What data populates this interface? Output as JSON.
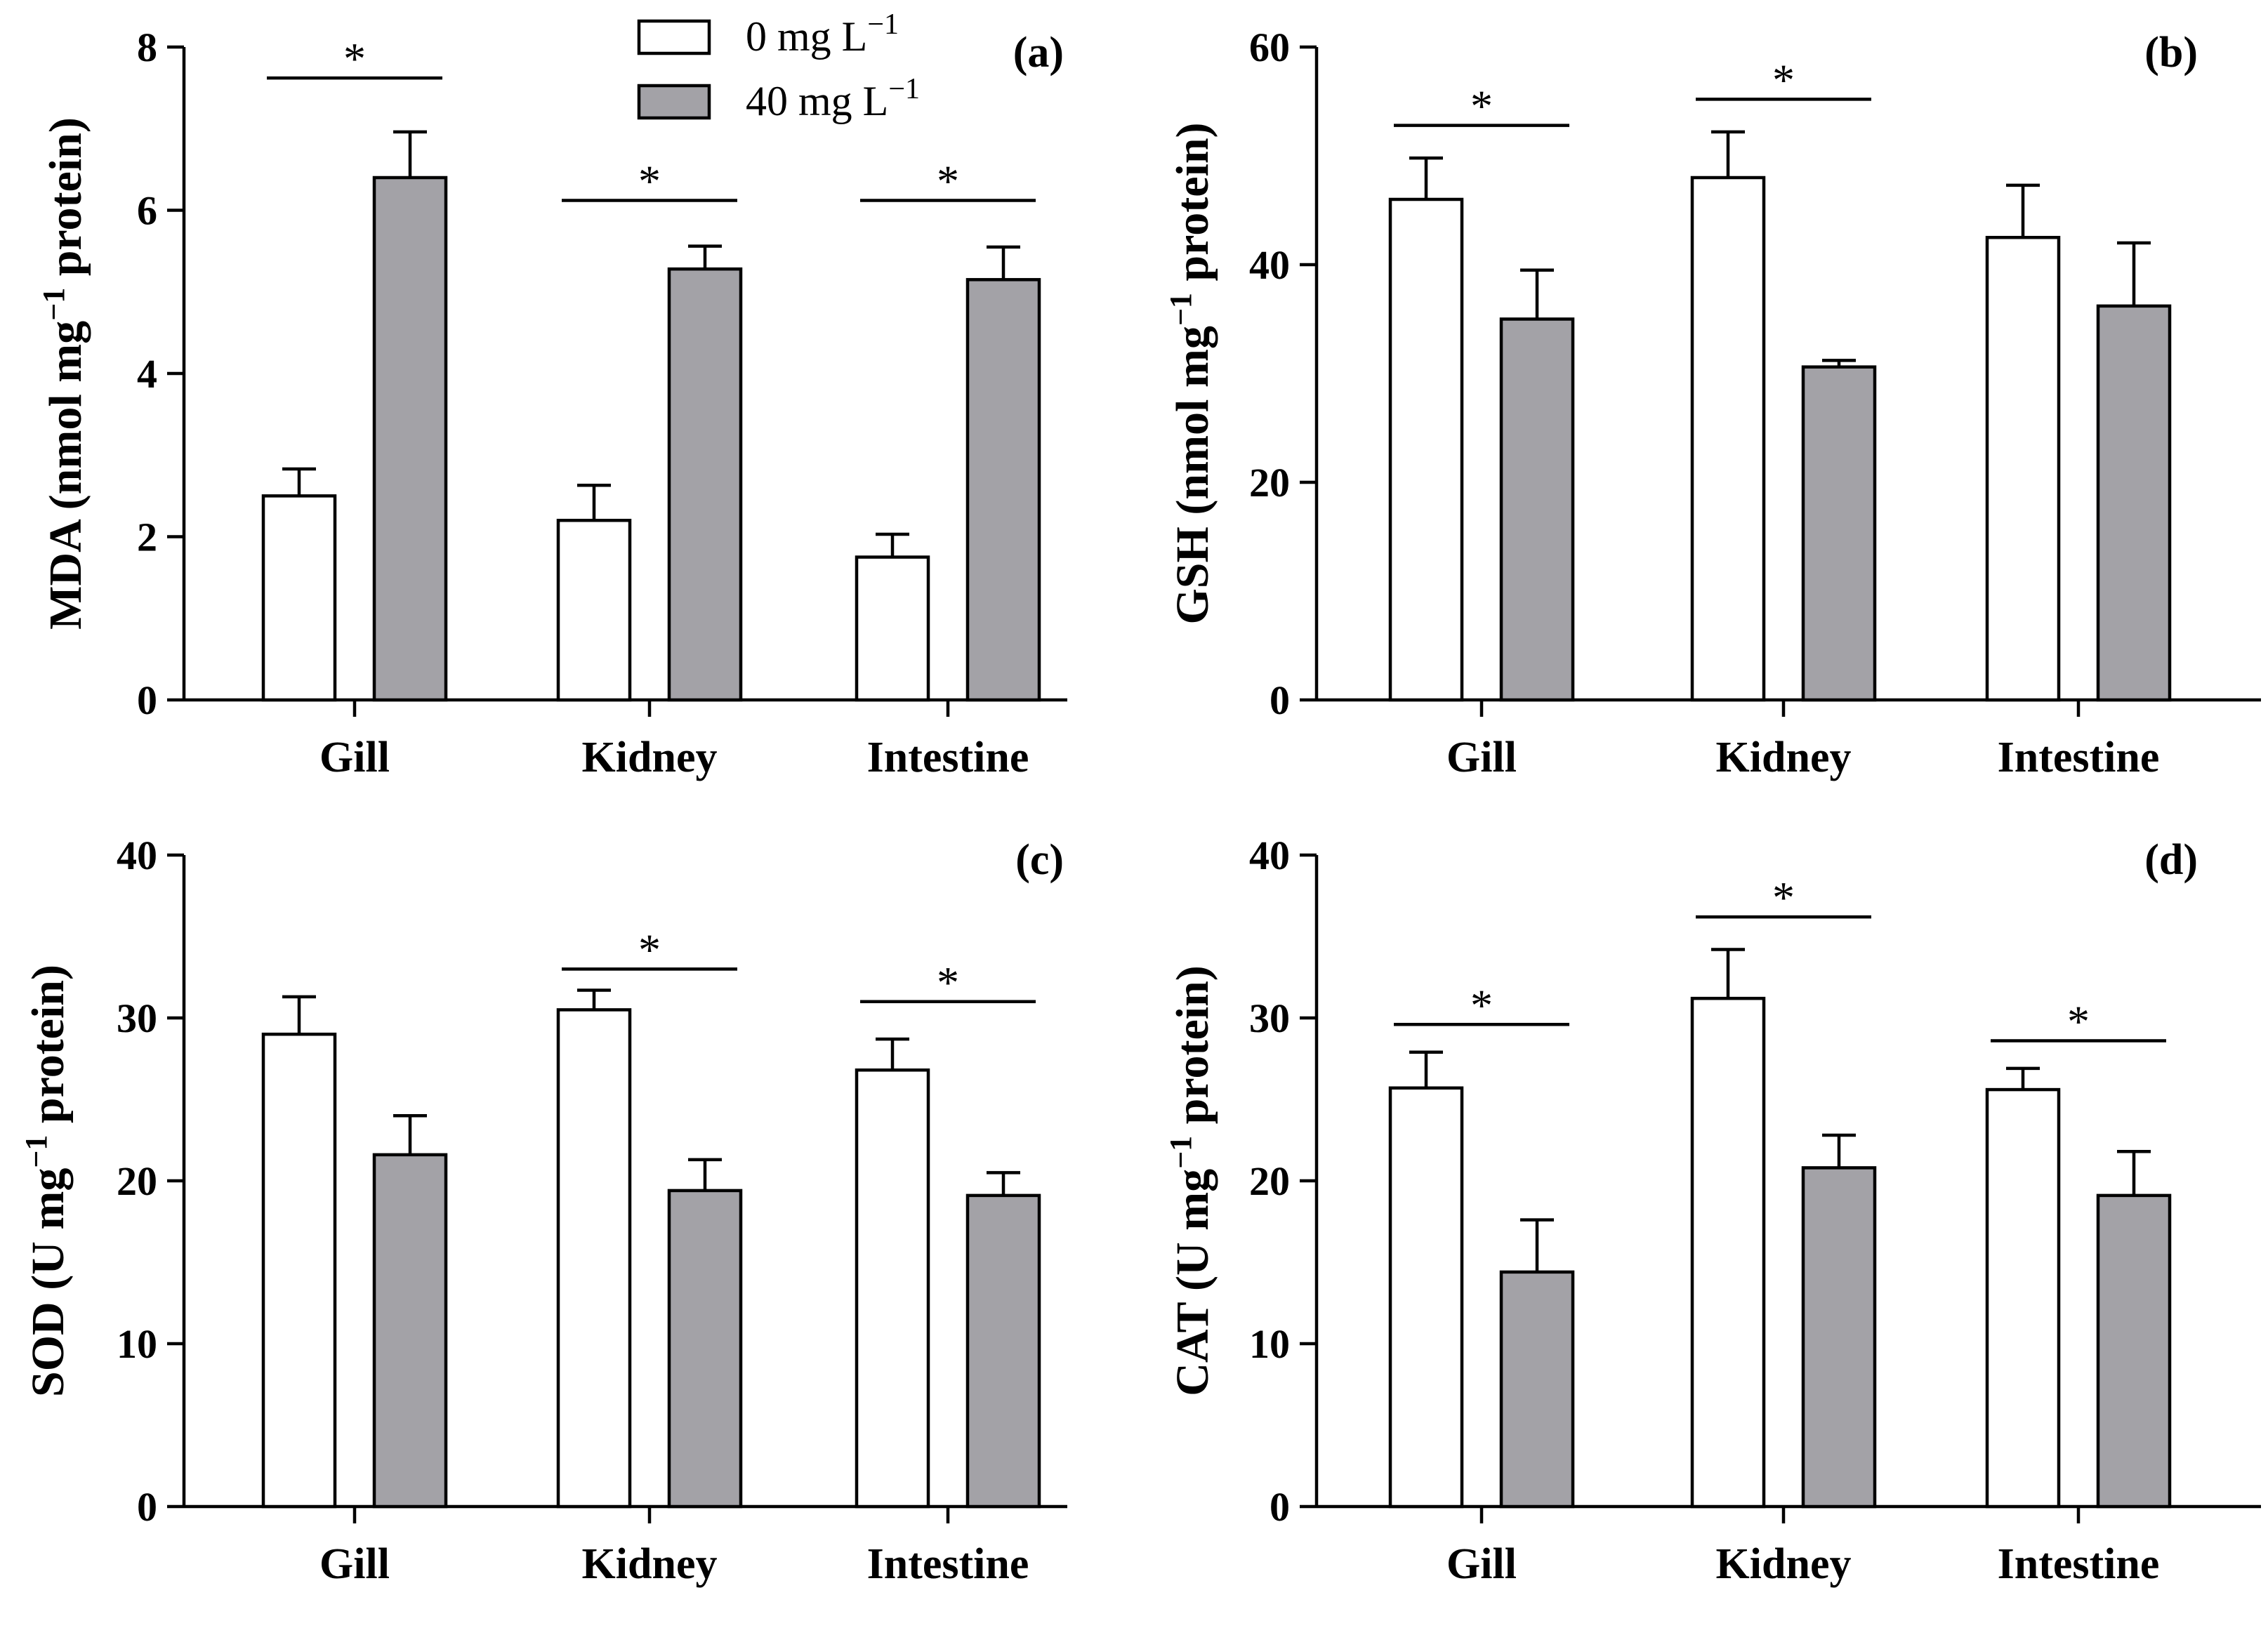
{
  "colors": {
    "control": "#ffffff",
    "treated": "#a3a2a7",
    "stroke": "#000000"
  },
  "legend": {
    "series": [
      {
        "key": "control",
        "name": "0 mg L",
        "sup": "−1"
      },
      {
        "key": "treated",
        "name": "40 mg L",
        "sup": "−1"
      }
    ]
  },
  "chart_data": [
    {
      "type": "bar",
      "tag": "(a)",
      "ylabel": {
        "pre": "MDA (nmol mg",
        "sup": "−1",
        "post": " protein)"
      },
      "ylim": [
        0,
        8
      ],
      "ticks": [
        0,
        2,
        4,
        6,
        8
      ],
      "categories": [
        "Gill",
        "Kidney",
        "Intestine"
      ],
      "series": [
        {
          "name": "0 mg L−1",
          "values": [
            2.5,
            2.2,
            1.75
          ],
          "errors": [
            0.33,
            0.43,
            0.28
          ]
        },
        {
          "name": "40 mg L−1",
          "values": [
            6.4,
            5.28,
            5.15
          ],
          "errors": [
            0.56,
            0.28,
            0.4
          ]
        }
      ],
      "significant": [
        true,
        true,
        true
      ],
      "sig_levels": [
        7.62,
        6.12,
        6.12
      ],
      "sig_symbol": "*",
      "show_legend": true
    },
    {
      "type": "bar",
      "tag": "(b)",
      "ylabel": {
        "pre": "GSH (nmol mg",
        "sup": "−1",
        "post": " protein)"
      },
      "ylim": [
        0,
        60
      ],
      "ticks": [
        0,
        20,
        40,
        60
      ],
      "categories": [
        "Gill",
        "Kidney",
        "Intestine"
      ],
      "series": [
        {
          "name": "0 mg L−1",
          "values": [
            46,
            48,
            42.5
          ],
          "errors": [
            3.8,
            4.2,
            4.8
          ]
        },
        {
          "name": "40 mg L−1",
          "values": [
            35,
            30.6,
            36.2
          ],
          "errors": [
            4.5,
            0.6,
            5.8
          ]
        }
      ],
      "significant": [
        true,
        true,
        false
      ],
      "sig_levels": [
        52.8,
        55.2,
        null
      ],
      "sig_symbol": "*",
      "show_legend": false
    },
    {
      "type": "bar",
      "tag": "(c)",
      "ylabel": {
        "pre": "SOD (U mg",
        "sup": "−1",
        "post": " protein)"
      },
      "ylim": [
        0,
        40
      ],
      "ticks": [
        0,
        10,
        20,
        30,
        40
      ],
      "categories": [
        "Gill",
        "Kidney",
        "Intestine"
      ],
      "series": [
        {
          "name": "0 mg L−1",
          "values": [
            29,
            30.5,
            26.8
          ],
          "errors": [
            2.3,
            1.2,
            1.9
          ]
        },
        {
          "name": "40 mg L−1",
          "values": [
            21.6,
            19.4,
            19.1
          ],
          "errors": [
            2.4,
            1.9,
            1.4
          ]
        }
      ],
      "significant": [
        false,
        true,
        true
      ],
      "sig_levels": [
        null,
        33.0,
        31.0
      ],
      "sig_symbol": "*",
      "show_legend": false
    },
    {
      "type": "bar",
      "tag": "(d)",
      "ylabel": {
        "pre": "CAT (U mg",
        "sup": "−1",
        "post": " protein)"
      },
      "ylim": [
        0,
        40
      ],
      "ticks": [
        0,
        10,
        20,
        30,
        40
      ],
      "categories": [
        "Gill",
        "Kidney",
        "Intestine"
      ],
      "series": [
        {
          "name": "0 mg L−1",
          "values": [
            25.7,
            31.2,
            25.6
          ],
          "errors": [
            2.2,
            3.0,
            1.3
          ]
        },
        {
          "name": "40 mg L−1",
          "values": [
            14.4,
            20.8,
            19.1
          ],
          "errors": [
            3.2,
            2.0,
            2.7
          ]
        }
      ],
      "significant": [
        true,
        true,
        true
      ],
      "sig_levels": [
        29.6,
        36.2,
        28.6
      ],
      "sig_symbol": "*",
      "show_legend": false
    }
  ]
}
